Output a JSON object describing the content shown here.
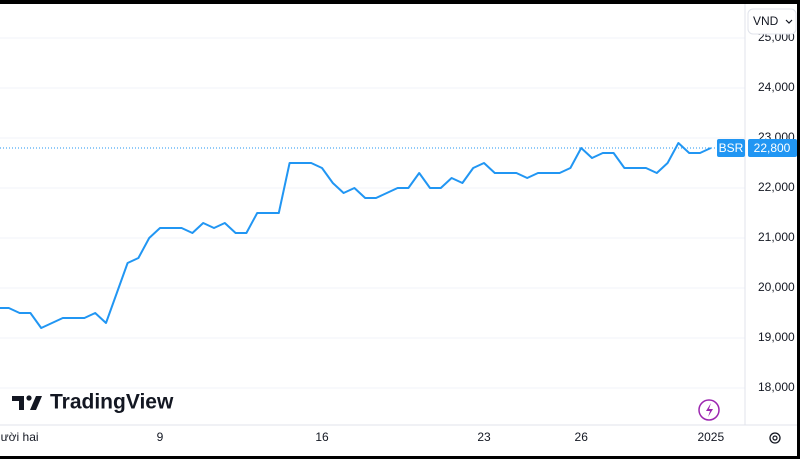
{
  "chart_data": {
    "type": "line",
    "currency": "VND",
    "brand": "TradingView",
    "categories": [
      null,
      null,
      "ười hai",
      null,
      null,
      null,
      null,
      null,
      null,
      null,
      null,
      null,
      null,
      null,
      null,
      "9",
      null,
      null,
      null,
      null,
      null,
      null,
      null,
      null,
      null,
      null,
      null,
      null,
      null,
      null,
      "16",
      null,
      null,
      null,
      null,
      null,
      null,
      null,
      null,
      null,
      null,
      null,
      null,
      null,
      null,
      "23",
      null,
      null,
      null,
      null,
      null,
      null,
      null,
      null,
      "26",
      null,
      null,
      null,
      null,
      null,
      null,
      null,
      null,
      null,
      null,
      null,
      "2025"
    ],
    "series": [
      {
        "name": "BSR",
        "color": "#2196f3",
        "values": [
          19600,
          19600,
          19500,
          19500,
          19200,
          19300,
          19400,
          19400,
          19400,
          19500,
          19300,
          19900,
          20500,
          20600,
          21000,
          21200,
          21200,
          21200,
          21100,
          21300,
          21200,
          21300,
          21100,
          21100,
          21500,
          21500,
          21500,
          22500,
          22500,
          22500,
          22400,
          22100,
          21900,
          22000,
          21800,
          21800,
          21900,
          22000,
          22000,
          22300,
          22000,
          22000,
          22200,
          22100,
          22400,
          22500,
          22300,
          22300,
          22300,
          22200,
          22300,
          22300,
          22300,
          22400,
          22800,
          22600,
          22700,
          22700,
          22400,
          22400,
          22400,
          22300,
          22500,
          22900,
          22700,
          22700,
          22800
        ]
      }
    ],
    "last_price": {
      "value": 22800,
      "label": "22,800"
    },
    "ylim": [
      17260,
      25660
    ],
    "yticks": [
      {
        "value": 18000,
        "label": "18,000"
      },
      {
        "value": 19000,
        "label": "19,000"
      },
      {
        "value": 20000,
        "label": "20,000"
      },
      {
        "value": 21000,
        "label": "21,000"
      },
      {
        "value": 22000,
        "label": "22,000"
      },
      {
        "value": 23000,
        "label": "23,000"
      },
      {
        "value": 24000,
        "label": "24,000"
      },
      {
        "value": 25000,
        "label": "25,000"
      }
    ],
    "grid": true
  }
}
